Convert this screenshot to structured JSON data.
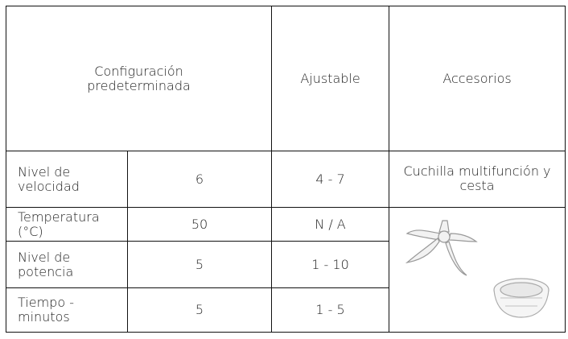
{
  "table": {
    "header": [
      "Configuración predeterminada",
      "Ajustable",
      "Accesorios"
    ],
    "rows": [
      [
        "Nivel de velocidad",
        "6",
        "4 - 7",
        "Cuchilla multifunción y cesta"
      ],
      [
        "Temperatura (°C)",
        "50",
        "N / A"
      ],
      [
        "Nivel de potencia",
        "5",
        "1 - 10"
      ],
      [
        "Tiempo - minutos",
        "5",
        "1 - 5"
      ]
    ]
  }
}
